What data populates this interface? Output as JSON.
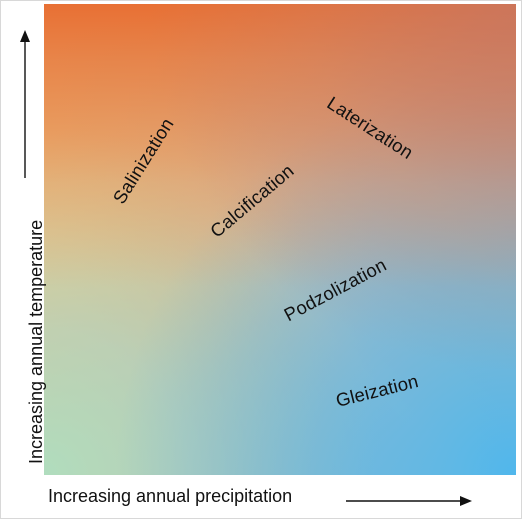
{
  "diagram": {
    "x_axis_label": "Increasing annual precipitation",
    "y_axis_label": "Increasing annual temperature",
    "processes": [
      {
        "name": "Salinization"
      },
      {
        "name": "Laterization"
      },
      {
        "name": "Calcification"
      },
      {
        "name": "Podzolization"
      },
      {
        "name": "Gleization"
      }
    ]
  },
  "colors": {
    "hot_dry": "#e8733a",
    "warm_mid": "#efc07a",
    "cool_dry": "#b3dcbf",
    "wet": "#53b6ea",
    "hot_wet": "#b98a86"
  }
}
